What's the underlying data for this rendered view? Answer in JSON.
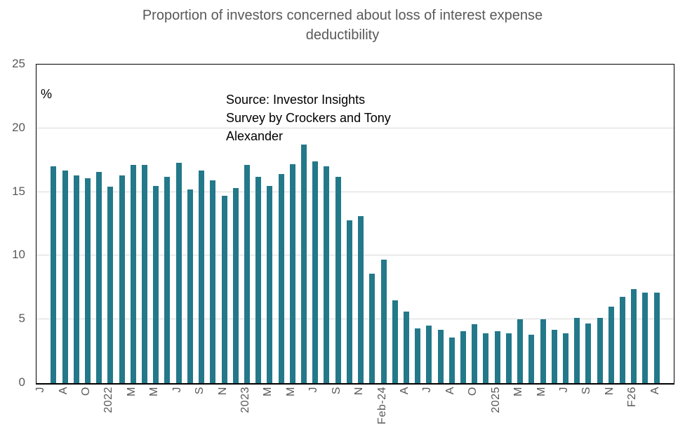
{
  "title": {
    "line1": "Proportion of investors concerned about loss of interest expense",
    "line2": "deductibility"
  },
  "annotations": {
    "percent_symbol": "%",
    "source_line1": "Source: Investor Insights",
    "source_line2": "Survey by Crockers and Tony",
    "source_line3": "Alexander"
  },
  "chart_data": {
    "type": "bar",
    "title": "Proportion of investors concerned about loss of interest expense deductibility",
    "ylabel": "%",
    "xlabel": "",
    "ylim": [
      0,
      25
    ],
    "yticks": [
      0,
      5,
      10,
      15,
      20,
      25
    ],
    "grid": "horizontal",
    "legend": "none",
    "bar_color": "#23798a",
    "axis_text_color": "#595959",
    "title_color": "#595959",
    "gridline_color": "#d9d9d9",
    "axis_line_color": "#000000",
    "n_categories": 56,
    "x_tick_label_every": 2,
    "x_tick_labels": [
      "J",
      "A",
      "O",
      "2022",
      "M",
      "M",
      "J",
      "S",
      "N",
      "2023",
      "M",
      "M",
      "J",
      "S",
      "N",
      "Feb-24",
      "A",
      "J",
      "A",
      "O",
      "2025",
      "M",
      "M",
      "J",
      "S",
      "N",
      "F26",
      "A"
    ],
    "values": [
      null,
      17.0,
      16.7,
      16.3,
      16.1,
      16.6,
      15.4,
      16.3,
      17.1,
      17.1,
      15.5,
      16.2,
      17.3,
      15.2,
      16.7,
      15.9,
      14.7,
      15.3,
      17.1,
      16.2,
      15.5,
      16.4,
      17.2,
      18.7,
      17.4,
      17.0,
      16.2,
      12.8,
      13.1,
      8.6,
      9.7,
      6.5,
      5.6,
      4.3,
      4.5,
      4.2,
      3.6,
      4.1,
      4.6,
      3.9,
      4.1,
      3.9,
      5.0,
      3.8,
      5.0,
      4.2,
      3.9,
      5.1,
      4.7,
      5.1,
      6.0,
      6.8,
      7.4,
      7.1,
      7.1,
      null
    ],
    "source_note": "Source: Investor Insights Survey by Crockers and Tony Alexander"
  }
}
